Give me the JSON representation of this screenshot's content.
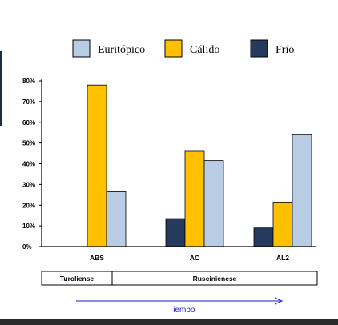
{
  "chart_data": {
    "type": "bar",
    "categories": [
      "ABS",
      "AC",
      "AL2"
    ],
    "series": [
      {
        "name": "Euritópico",
        "color": "#b8cce4",
        "values": [
          26.5,
          41.5,
          54
        ]
      },
      {
        "name": "Cálido",
        "color": "#ffc000",
        "values": [
          78,
          46,
          21.5
        ]
      },
      {
        "name": "Frío",
        "color": "#243a5e",
        "values": [
          0,
          13.5,
          9
        ]
      }
    ],
    "yticks": [
      "0%",
      "10%",
      "20%",
      "30%",
      "40%",
      "50%",
      "60%",
      "70%",
      "80%"
    ],
    "ylim": [
      0,
      80
    ],
    "legend_position": "top",
    "grid": false,
    "title": "",
    "xlabel": "",
    "ylabel": "",
    "periods": [
      {
        "label": "Turoliense",
        "span": [
          "ABS"
        ]
      },
      {
        "label": "Ruscinienese",
        "span": [
          "AC",
          "AL2"
        ]
      }
    ],
    "time_arrow_label": "Tiempo"
  }
}
